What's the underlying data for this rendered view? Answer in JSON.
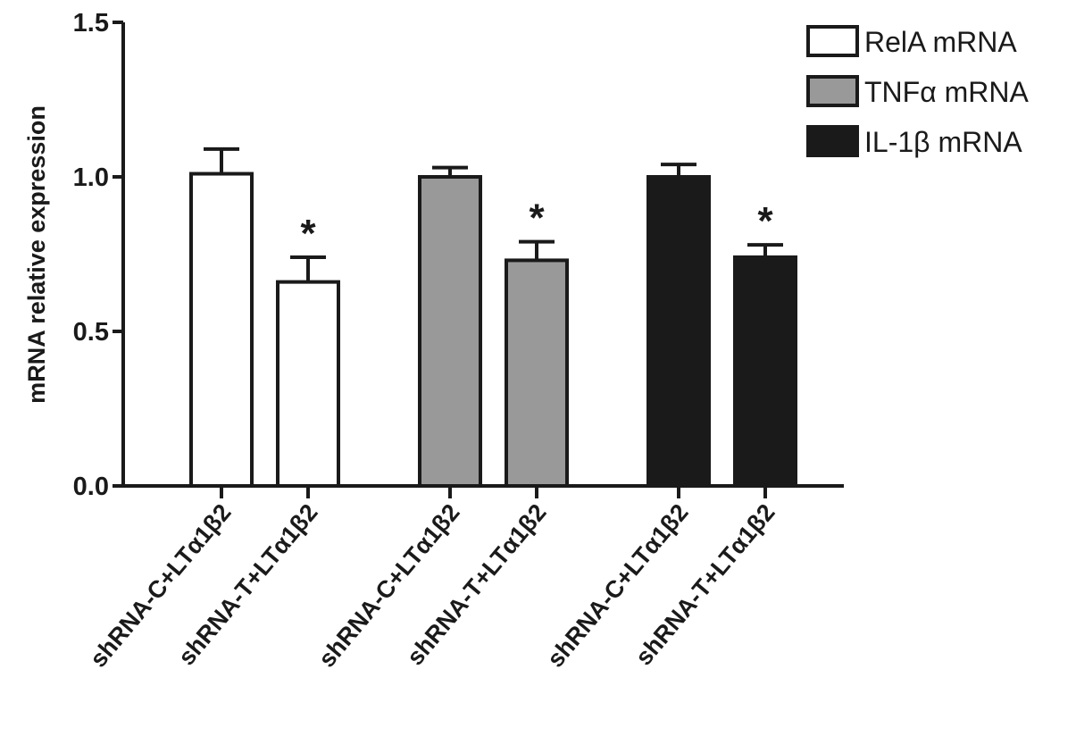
{
  "chart_data": {
    "type": "bar",
    "ylabel": "mRNA relative expression",
    "categories": [
      "shRNA-C+LTα1β2",
      "shRNA-T+LTα1β2",
      "shRNA-C+LTα1β2",
      "shRNA-T+LTα1β2",
      "shRNA-C+LTα1β2",
      "shRNA-T+LTα1β2"
    ],
    "series": [
      {
        "name": "RelA mRNA",
        "color": "#ffffff",
        "values": [
          1.01,
          0.66,
          null,
          null,
          null,
          null
        ],
        "errors": [
          0.08,
          0.08,
          null,
          null,
          null,
          null
        ]
      },
      {
        "name": "TNFα mRNA",
        "color": "#999999",
        "values": [
          null,
          null,
          1.0,
          0.73,
          null,
          null
        ],
        "errors": [
          null,
          null,
          0.03,
          0.06,
          null,
          null
        ]
      },
      {
        "name": "IL-1β mRNA",
        "color": "#1a1a1a",
        "values": [
          null,
          null,
          null,
          null,
          1.0,
          0.74
        ],
        "errors": [
          null,
          null,
          null,
          null,
          0.04,
          0.04
        ]
      }
    ],
    "annotations": [
      {
        "text": "*",
        "index": 1
      },
      {
        "text": "*",
        "index": 3
      },
      {
        "text": "*",
        "index": 5
      }
    ],
    "ylim": [
      0,
      1.5
    ],
    "yticks": [
      {
        "value": 0,
        "label": "0.0"
      },
      {
        "value": 0.5,
        "label": "0.5"
      },
      {
        "value": 1,
        "label": "1.0"
      },
      {
        "value": 1.5,
        "label": "1.5"
      }
    ],
    "legend": "top-right"
  }
}
